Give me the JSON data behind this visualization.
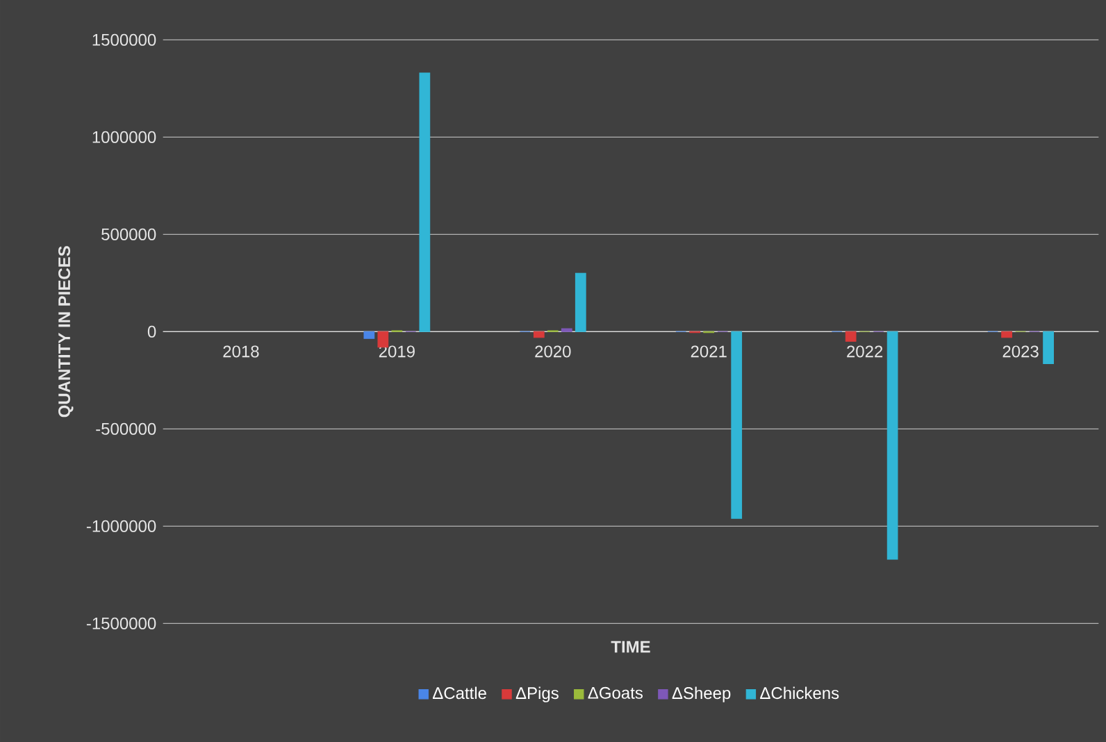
{
  "chart_data": {
    "type": "bar",
    "xlabel": "TIME",
    "ylabel": "QUANTITY IN PIECES",
    "categories": [
      "2018",
      "2019",
      "2020",
      "2021",
      "2022",
      "2023"
    ],
    "series": [
      {
        "name": "ΔCattle",
        "color": "#4a86e8",
        "values": [
          null,
          -35000,
          0,
          0,
          0,
          0
        ]
      },
      {
        "name": "ΔPigs",
        "color": "#d93a3a",
        "values": [
          null,
          -80000,
          -30000,
          -5000,
          -50000,
          -30000
        ]
      },
      {
        "name": "ΔGoats",
        "color": "#9bbb3b",
        "values": [
          null,
          5000,
          5000,
          -5000,
          0,
          0
        ]
      },
      {
        "name": "ΔSheep",
        "color": "#7e58b8",
        "values": [
          null,
          0,
          15000,
          0,
          0,
          0
        ]
      },
      {
        "name": "ΔChickens",
        "color": "#31b6d6",
        "values": [
          null,
          1330000,
          300000,
          -960000,
          -1170000,
          -165000
        ]
      }
    ],
    "ylim": [
      -1500000,
      1500000
    ],
    "yticks": [
      -1500000,
      -1000000,
      -500000,
      0,
      500000,
      1000000,
      1500000
    ],
    "grid": "y",
    "legend": "bottom"
  }
}
